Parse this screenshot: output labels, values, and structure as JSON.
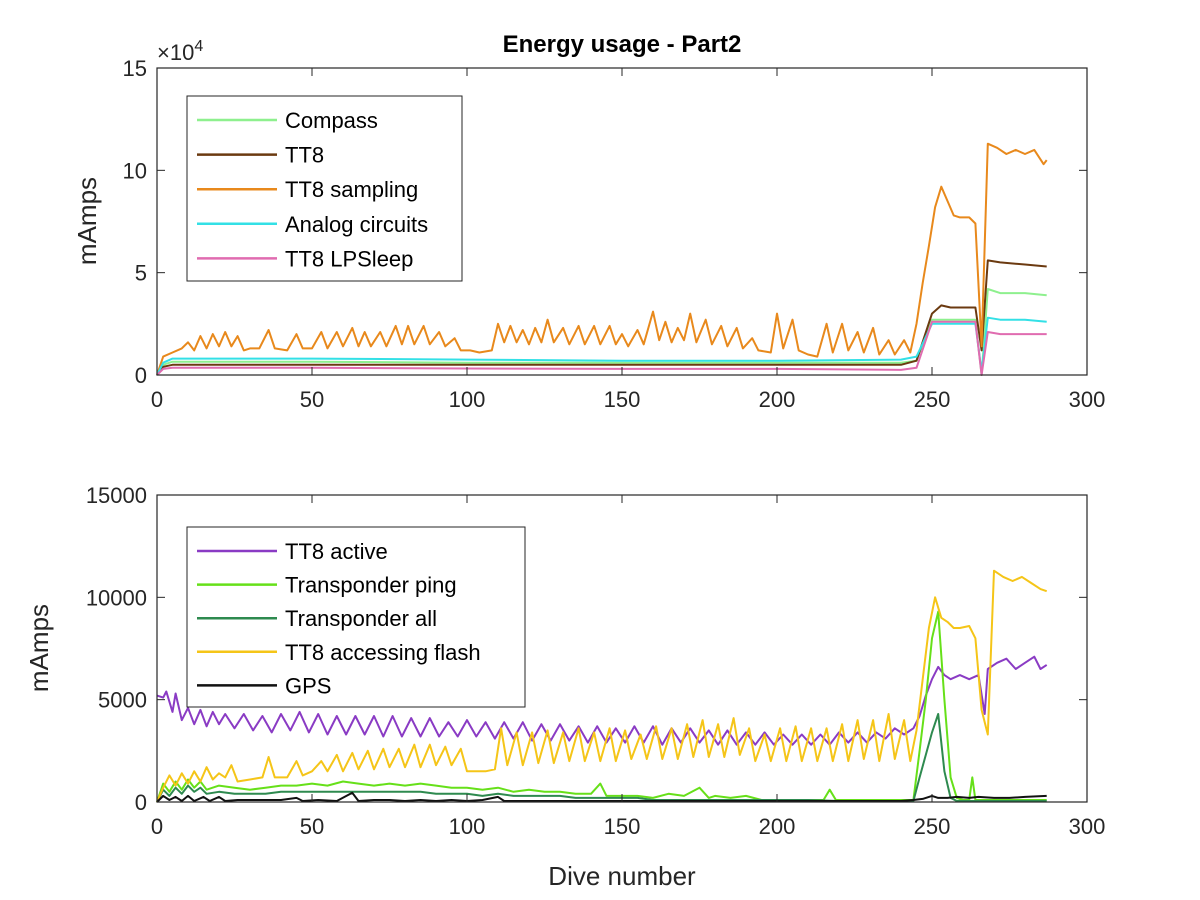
{
  "chart_data": [
    {
      "type": "line",
      "title": "Energy usage - Part2",
      "xlabel": "",
      "ylabel": "mAmps",
      "y_exponent_label": "×10",
      "y_exponent_power": "4",
      "xlim": [
        0,
        300
      ],
      "ylim": [
        0,
        150000
      ],
      "xticks": [
        0,
        50,
        100,
        150,
        200,
        250,
        300
      ],
      "yticks": [
        0,
        50000,
        100000,
        150000
      ],
      "yticklabels": [
        "0",
        "5",
        "10",
        "15"
      ],
      "grid": false,
      "legend_position": "top-left",
      "series": [
        {
          "name": "Compass",
          "color": "#8ef08e",
          "points": [
            [
              0,
              0
            ],
            [
              2,
              5000
            ],
            [
              5,
              6500
            ],
            [
              50,
              6500
            ],
            [
              100,
              6000
            ],
            [
              150,
              6000
            ],
            [
              200,
              6000
            ],
            [
              240,
              6000
            ],
            [
              245,
              7000
            ],
            [
              250,
              27000
            ],
            [
              255,
              27000
            ],
            [
              260,
              27000
            ],
            [
              264,
              27000
            ],
            [
              266,
              0
            ],
            [
              268,
              42000
            ],
            [
              272,
              40000
            ],
            [
              280,
              40000
            ],
            [
              287,
              39000
            ]
          ]
        },
        {
          "name": "TT8",
          "color": "#6b3a10",
          "points": [
            [
              0,
              0
            ],
            [
              2,
              4000
            ],
            [
              5,
              5000
            ],
            [
              50,
              5000
            ],
            [
              100,
              5000
            ],
            [
              150,
              5000
            ],
            [
              200,
              5000
            ],
            [
              240,
              5000
            ],
            [
              245,
              7000
            ],
            [
              250,
              30000
            ],
            [
              253,
              34000
            ],
            [
              256,
              33000
            ],
            [
              260,
              33000
            ],
            [
              264,
              33000
            ],
            [
              266,
              12000
            ],
            [
              268,
              56000
            ],
            [
              272,
              55000
            ],
            [
              280,
              54000
            ],
            [
              287,
              53000
            ]
          ]
        }
      ]
    }
  ]
}
